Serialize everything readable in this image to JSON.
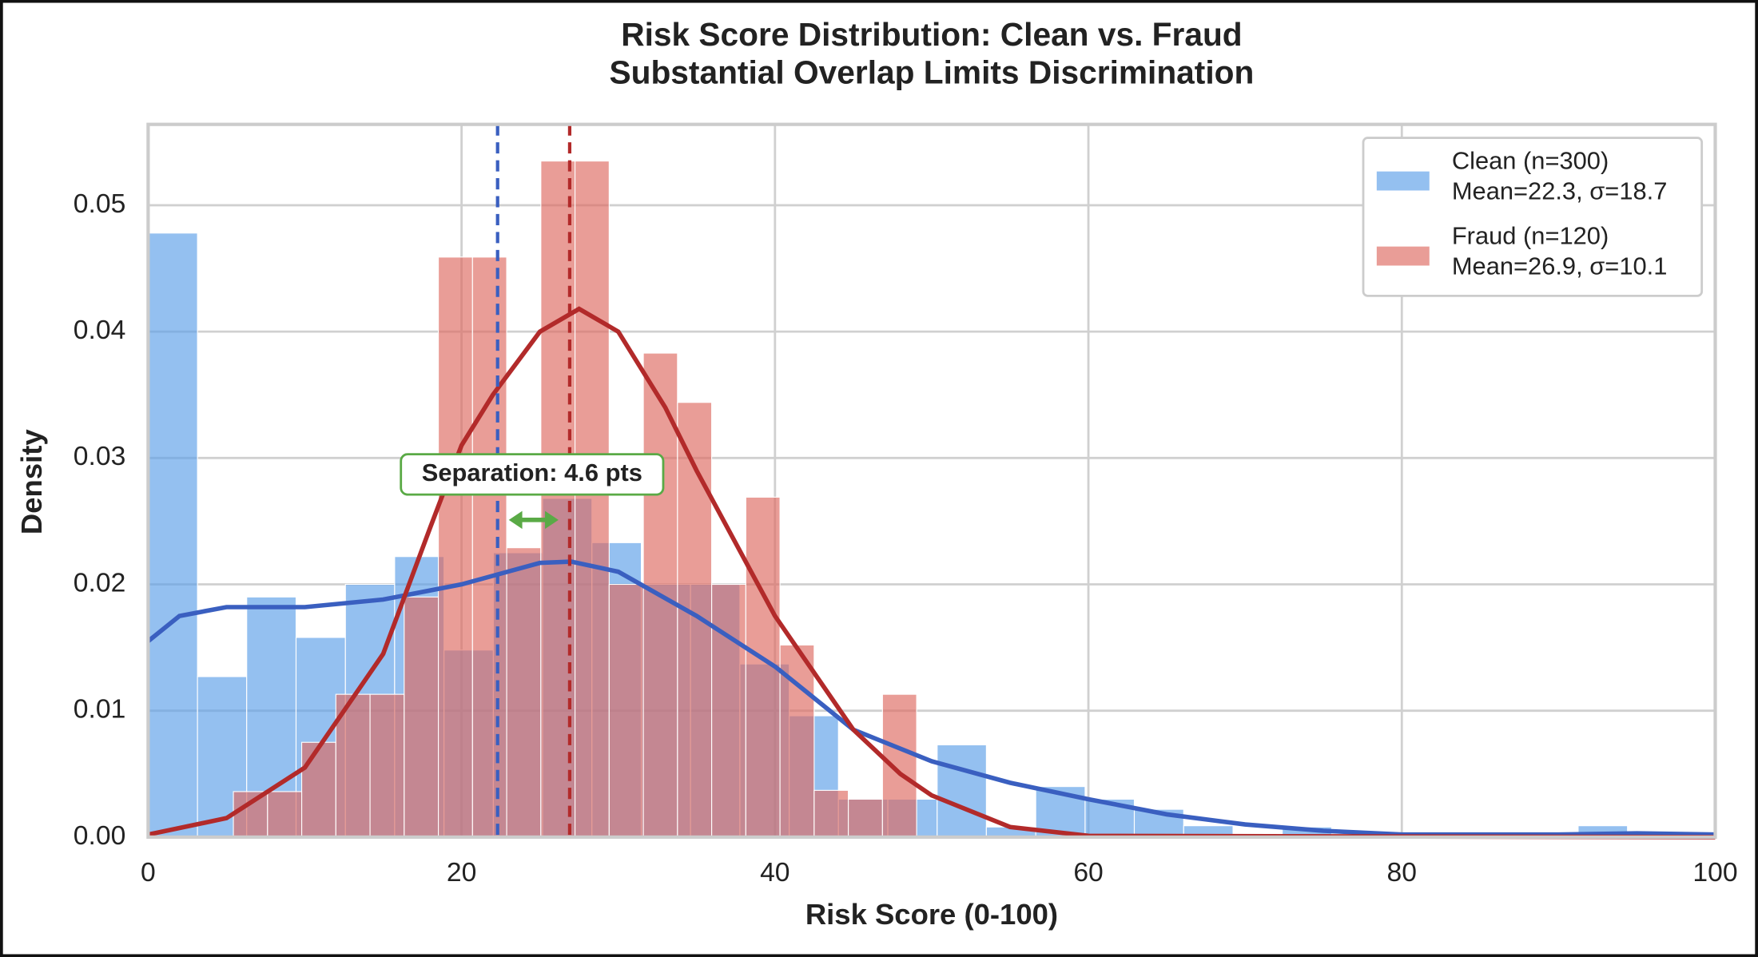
{
  "chart_data": {
    "type": "histogram",
    "title": "Risk Score Distribution: Clean vs. Fraud",
    "subtitle": "Substantial Overlap Limits Discrimination",
    "xlabel": "Risk Score (0-100)",
    "ylabel": "Density",
    "xlim": [
      0,
      100
    ],
    "ylim": [
      0,
      0.0564
    ],
    "xticks": [
      0,
      20,
      40,
      60,
      80,
      100
    ],
    "yticks": [
      {
        "value": 0,
        "label": "0.00"
      },
      0.01,
      0.02,
      0.03,
      0.04,
      0.05
    ],
    "grid": true,
    "legend": "upper right",
    "series": [
      {
        "name": "Clean (n=300)",
        "stats": "Mean=22.3, σ=18.7",
        "color": "#5a9ee8",
        "line_color": "#3a5fc0",
        "mean": 22.3,
        "bins": [
          0,
          3.15,
          6.29,
          9.44,
          12.59,
          15.73,
          18.88,
          22.03,
          25.17,
          28.32,
          31.47,
          34.61,
          37.76,
          40.91,
          44.05,
          47.2,
          50.35,
          53.49,
          56.64,
          59.79,
          62.93,
          66.08,
          69.23,
          72.37,
          75.52,
          78.67,
          81.81,
          84.96,
          88.11,
          91.25,
          94.4
        ],
        "values": [
          0.0478,
          0.0127,
          0.019,
          0.0158,
          0.02,
          0.0222,
          0.0148,
          0.0225,
          0.0268,
          0.0233,
          0.02,
          0.02,
          0.0137,
          0.0096,
          0.003,
          0.003,
          0.0073,
          0.0008,
          0.004,
          0.003,
          0.0022,
          0.0009,
          0,
          0.0008,
          0,
          0,
          0,
          0,
          0,
          0.0009
        ],
        "kde": {
          "x": [
            0,
            2,
            5,
            10,
            15,
            20,
            25,
            27,
            30,
            35,
            40,
            45,
            50,
            55,
            60,
            65,
            70,
            75,
            80,
            90,
            95,
            100
          ],
          "y": [
            0.0155,
            0.0175,
            0.0182,
            0.0182,
            0.0188,
            0.02,
            0.0217,
            0.0218,
            0.021,
            0.0175,
            0.0135,
            0.0085,
            0.006,
            0.0043,
            0.003,
            0.0018,
            0.001,
            0.0005,
            0.0002,
            0.0002,
            0.0003,
            0.0002
          ]
        }
      },
      {
        "name": "Fraud (n=120)",
        "stats": "Mean=26.9, σ=10.1",
        "color": "#dd6860",
        "line_color": "#b22a2a",
        "mean": 26.9,
        "bins": [
          5.44,
          7.62,
          9.8,
          11.98,
          14.16,
          16.34,
          18.52,
          20.7,
          22.88,
          25.06,
          27.24,
          29.42,
          31.6,
          33.78,
          35.96,
          38.14,
          40.32,
          42.5,
          44.68,
          46.86,
          49.04
        ],
        "values": [
          0.0036,
          0.0036,
          0.0075,
          0.0113,
          0.0113,
          0.019,
          0.0459,
          0.0459,
          0.0229,
          0.0535,
          0.0535,
          0.02,
          0.0383,
          0.0344,
          0.02,
          0.0269,
          0.0152,
          0.0037,
          0.003,
          0.0113
        ],
        "kde": {
          "x": [
            0,
            5,
            10,
            15,
            18,
            20,
            22,
            25,
            27.5,
            30,
            33,
            35,
            40,
            45,
            48,
            50,
            55,
            60,
            100
          ],
          "y": [
            0.0002,
            0.0015,
            0.0055,
            0.0145,
            0.0245,
            0.031,
            0.035,
            0.04,
            0.0418,
            0.04,
            0.034,
            0.029,
            0.0175,
            0.0085,
            0.005,
            0.0033,
            0.0008,
            0.0001,
            0
          ]
        }
      }
    ],
    "annotation": {
      "text": "Separation: 4.6 pts",
      "x": 24.5,
      "y": 0.0287,
      "arrow_y": 0.0251,
      "color": "#5aaa46"
    }
  }
}
